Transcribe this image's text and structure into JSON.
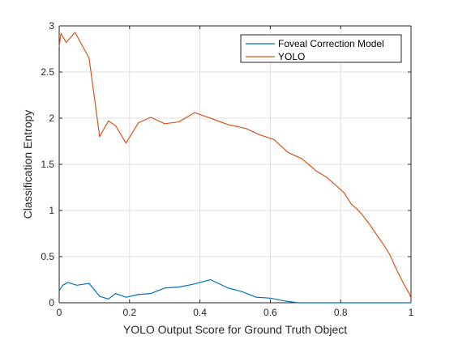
{
  "chart_data": {
    "type": "line",
    "xlabel": "YOLO Output Score for Ground Truth Object",
    "ylabel": "Classification Entropy",
    "xlim": [
      0,
      1
    ],
    "ylim": [
      0,
      3
    ],
    "xticks": [
      0,
      0.2,
      0.4,
      0.6,
      0.8,
      1
    ],
    "xtick_labels": [
      "0",
      "0.2",
      "0.4",
      "0.6",
      "0.8",
      "1"
    ],
    "yticks": [
      0,
      0.5,
      1,
      1.5,
      2,
      2.5,
      3
    ],
    "ytick_labels": [
      "0",
      "0.5",
      "1",
      "1.5",
      "2",
      "2.5",
      "3"
    ],
    "grid": true,
    "legend_position": "top-right",
    "series": [
      {
        "name": "Foveal Correction Model",
        "color": "#0072BD",
        "x": [
          0,
          0.01,
          0.025,
          0.05,
          0.085,
          0.115,
          0.14,
          0.16,
          0.19,
          0.225,
          0.26,
          0.3,
          0.34,
          0.38,
          0.43,
          0.48,
          0.52,
          0.56,
          0.6,
          0.64,
          0.68,
          0.72,
          0.8,
          0.9,
          1.0
        ],
        "y": [
          0.13,
          0.19,
          0.22,
          0.19,
          0.21,
          0.07,
          0.04,
          0.1,
          0.06,
          0.09,
          0.1,
          0.16,
          0.17,
          0.2,
          0.25,
          0.16,
          0.12,
          0.06,
          0.05,
          0.02,
          0.0,
          0.0,
          0.0,
          0.0,
          0.0
        ]
      },
      {
        "name": "YOLO",
        "color": "#D95319",
        "x": [
          0,
          0.005,
          0.02,
          0.045,
          0.085,
          0.115,
          0.14,
          0.16,
          0.19,
          0.225,
          0.26,
          0.3,
          0.34,
          0.385,
          0.43,
          0.48,
          0.53,
          0.57,
          0.61,
          0.65,
          0.69,
          0.73,
          0.76,
          0.79,
          0.81,
          0.83,
          0.845,
          0.86,
          0.88,
          0.9,
          0.92,
          0.94,
          0.96,
          0.98,
          0.995,
          1.0
        ],
        "y": [
          2.77,
          2.92,
          2.82,
          2.93,
          2.65,
          1.8,
          1.97,
          1.92,
          1.73,
          1.95,
          2.01,
          1.94,
          1.96,
          2.06,
          2.0,
          1.93,
          1.89,
          1.82,
          1.77,
          1.63,
          1.56,
          1.43,
          1.36,
          1.26,
          1.19,
          1.07,
          1.02,
          0.96,
          0.86,
          0.75,
          0.64,
          0.52,
          0.35,
          0.2,
          0.1,
          0.05
        ]
      }
    ]
  }
}
